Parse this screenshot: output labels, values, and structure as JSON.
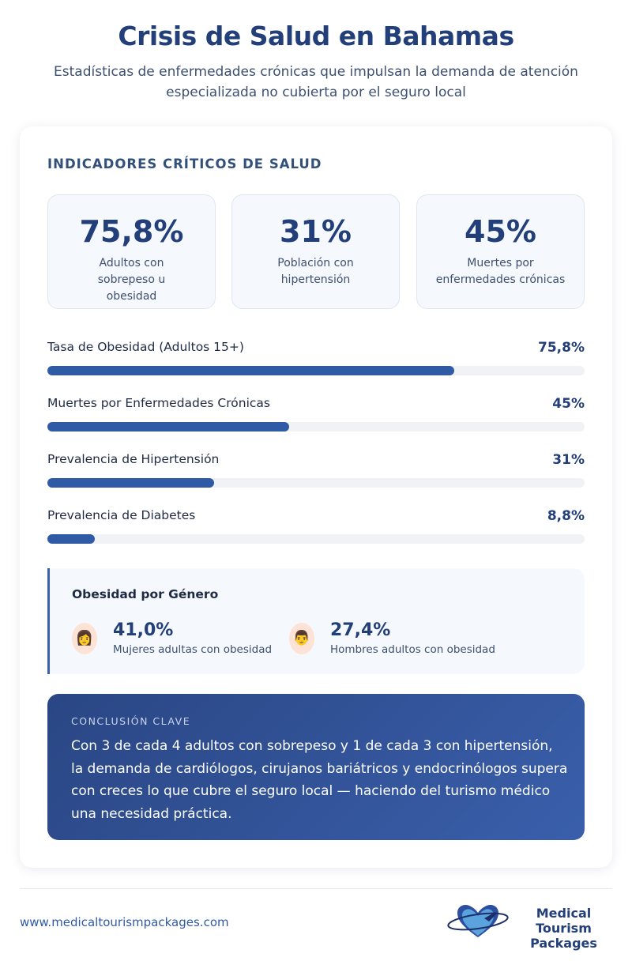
{
  "header": {
    "title": "Crisis de Salud en Bahamas",
    "subtitle": "Estadísticas de enfermedades crónicas que impulsan la demanda de atención especializada no cubierta por el seguro local"
  },
  "section_title": "INDICADORES CRÍTICOS DE SALUD",
  "stats": [
    {
      "value": "75,8%",
      "label": "Adultos con sobrepeso u obesidad"
    },
    {
      "value": "31%",
      "label": "Población con hipertensión"
    },
    {
      "value": "45%",
      "label": "Muertes por enfermedades crónicas"
    }
  ],
  "bars": [
    {
      "label": "Tasa de Obesidad (Adultos 15+)",
      "value_text": "75,8%",
      "value": 75.8
    },
    {
      "label": "Muertes por Enfermedades Crónicas",
      "value_text": "45%",
      "value": 45
    },
    {
      "label": "Prevalencia de Hipertensión",
      "value_text": "31%",
      "value": 31
    },
    {
      "label": "Prevalencia de Diabetes",
      "value_text": "8,8%",
      "value": 8.8
    }
  ],
  "gender": {
    "title": "Obesidad por Género",
    "items": [
      {
        "icon": "woman-icon",
        "emoji": "👩",
        "value": "41,0%",
        "label": "Mujeres adultas con obesidad"
      },
      {
        "icon": "man-icon",
        "emoji": "👨",
        "value": "27,4%",
        "label": "Hombres adultos con obesidad"
      }
    ]
  },
  "conclusion": {
    "kicker": "CONCLUSIÓN CLAVE",
    "text": "Con 3 de cada 4 adultos con sobrepeso y 1 de cada 3 con hipertensión, la demanda de cardiólogos, cirujanos bariátricos y endocrinólogos supera con creces lo que cubre el seguro local — haciendo del turismo médico una necesidad práctica."
  },
  "footer": {
    "url": "www.medicaltourismpackages.com",
    "logo_line1": "Medical Tourism",
    "logo_line2": "Packages"
  },
  "colors": {
    "primary": "#233f7a",
    "bar": "#2f5aa5",
    "track": "#f0f2f5"
  }
}
